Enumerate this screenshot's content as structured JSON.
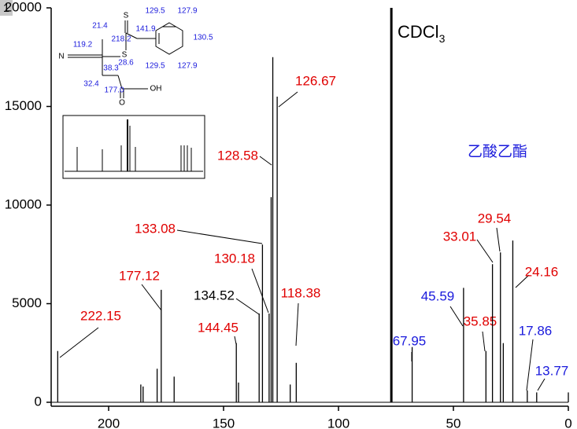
{
  "tab": "1",
  "solvent": {
    "text": "CDCl",
    "subscript": "3"
  },
  "compound_note": "乙酸乙酯",
  "structure": {
    "labels": [
      "S",
      "129.5",
      "127.9",
      "21.4",
      "141.9",
      "218.2",
      "130.5",
      "119.2",
      "N",
      "S",
      "28.6",
      "38.3",
      "129.5",
      "127.9",
      "32.4",
      "177.0",
      "O",
      "OH"
    ]
  },
  "chart_data": {
    "type": "stick",
    "xlim": [
      225,
      0
    ],
    "ylim": [
      -200,
      20000
    ],
    "xticks": [
      200,
      150,
      100,
      50,
      0
    ],
    "yticks": [
      0,
      5000,
      10000,
      15000,
      20000
    ],
    "color": "#000000",
    "peaks": [
      {
        "ppm": 222.15,
        "height": 2600,
        "label": "222.15",
        "color": "#e00000"
      },
      {
        "ppm": 186,
        "height": 900
      },
      {
        "ppm": 185,
        "height": 800
      },
      {
        "ppm": 178.9,
        "height": 1700
      },
      {
        "ppm": 177.12,
        "height": 5700,
        "label": "177.12",
        "color": "#e00000"
      },
      {
        "ppm": 171.5,
        "height": 1300
      },
      {
        "ppm": 144.45,
        "height": 3000,
        "label": "144.45",
        "color": "#e00000"
      },
      {
        "ppm": 143.5,
        "height": 1000
      },
      {
        "ppm": 134.52,
        "height": 4500,
        "label": "134.52",
        "color": "#000000"
      },
      {
        "ppm": 133.08,
        "height": 8000,
        "label": "133.08",
        "color": "#e00000"
      },
      {
        "ppm": 130.18,
        "height": 4500,
        "label": "130.18",
        "color": "#e00000"
      },
      {
        "ppm": 129.3,
        "height": 10400
      },
      {
        "ppm": 128.58,
        "height": 17500,
        "label": "128.58",
        "color": "#e00000"
      },
      {
        "ppm": 126.67,
        "height": 15500,
        "label": "126.67",
        "color": "#e00000"
      },
      {
        "ppm": 121,
        "height": 900
      },
      {
        "ppm": 118.38,
        "height": 2000,
        "label": "118.38",
        "color": "#e00000"
      },
      {
        "ppm": 77,
        "height": 20000
      },
      {
        "ppm": 67.95,
        "height": 2800,
        "label": "67.95",
        "color": "#1a1adc"
      },
      {
        "ppm": 45.59,
        "height": 5800,
        "label": "45.59",
        "color": "#1a1adc"
      },
      {
        "ppm": 35.85,
        "height": 2600,
        "label": "35.85",
        "color": "#e00000"
      },
      {
        "ppm": 33.01,
        "height": 7000,
        "label": "33.01",
        "color": "#e00000"
      },
      {
        "ppm": 29.54,
        "height": 7600,
        "label": "29.54",
        "color": "#e00000"
      },
      {
        "ppm": 28.3,
        "height": 3000
      },
      {
        "ppm": 24.16,
        "height": 8200,
        "label": "24.16",
        "color": "#e00000"
      },
      {
        "ppm": 17.86,
        "height": 600,
        "label": "17.86",
        "color": "#1a1adc"
      },
      {
        "ppm": 13.77,
        "height": 500,
        "label": "13.77",
        "color": "#1a1adc"
      },
      {
        "ppm": 0,
        "height": 500
      }
    ]
  }
}
